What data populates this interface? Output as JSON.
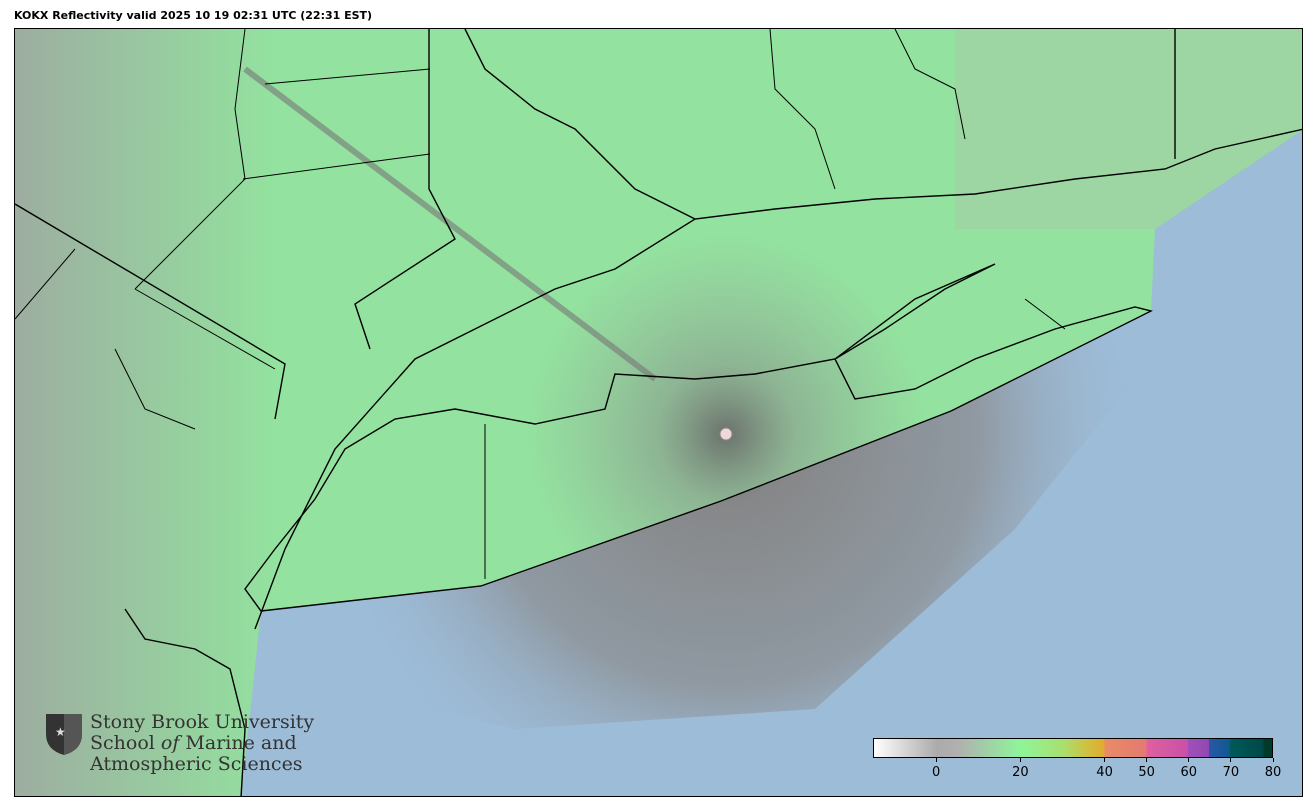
{
  "title": "KOKX Reflectivity valid 2025 10 19 02:31 UTC (22:31 EST)",
  "map": {
    "radar_site": "KOKX",
    "product": "Reflectivity",
    "colors": {
      "land_echo": "#8fe69c",
      "ocean": "#9dbcd8",
      "clutter": "#8a8a8a",
      "borders": "#000000"
    }
  },
  "colorbar": {
    "range": [
      -15,
      80
    ],
    "ticks": [
      {
        "value": 0,
        "label": "0"
      },
      {
        "value": 20,
        "label": "20"
      },
      {
        "value": 40,
        "label": "40"
      },
      {
        "value": 50,
        "label": "50"
      },
      {
        "value": 60,
        "label": "60"
      },
      {
        "value": 70,
        "label": "70"
      },
      {
        "value": 80,
        "label": "80"
      }
    ],
    "stops": [
      {
        "value": -15,
        "color": "#ffffff"
      },
      {
        "value": 0,
        "color": "#ababab"
      },
      {
        "value": 5,
        "color": "#b0b0b0"
      },
      {
        "value": 20,
        "color": "#8ef59a"
      },
      {
        "value": 30,
        "color": "#a8e070"
      },
      {
        "value": 36,
        "color": "#d0c040"
      },
      {
        "value": 40,
        "color": "#e0aa30"
      },
      {
        "value": 40,
        "color": "#e88c66"
      },
      {
        "value": 50,
        "color": "#e47a70"
      },
      {
        "value": 50,
        "color": "#e060a0"
      },
      {
        "value": 60,
        "color": "#c850a8"
      },
      {
        "value": 60,
        "color": "#a050b8"
      },
      {
        "value": 65,
        "color": "#9048b0"
      },
      {
        "value": 65,
        "color": "#2a58a8"
      },
      {
        "value": 70,
        "color": "#105890"
      },
      {
        "value": 70,
        "color": "#005a5a"
      },
      {
        "value": 78,
        "color": "#004848"
      },
      {
        "value": 78,
        "color": "#003a2a"
      },
      {
        "value": 80,
        "color": "#003a2a"
      }
    ]
  },
  "logo": {
    "line1": "Stony Brook University",
    "line2a": "School ",
    "line2b": "of",
    "line2c": " Marine and",
    "line3": "Atmospheric Sciences"
  }
}
